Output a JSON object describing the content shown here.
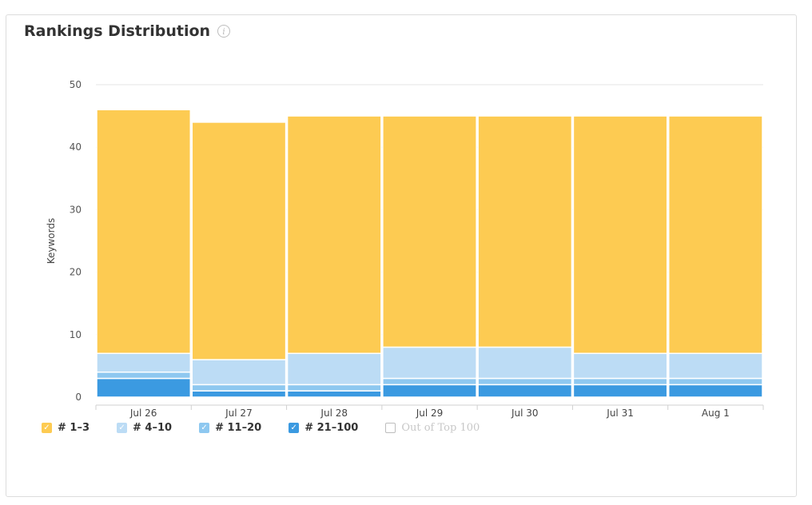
{
  "chart_data": {
    "type": "bar",
    "stacked": true,
    "title": "Rankings Distribution",
    "ylabel": "Keywords",
    "xlabel": "",
    "ylim": [
      0,
      50
    ],
    "yticks": [
      0,
      10,
      20,
      30,
      40,
      50
    ],
    "grid": true,
    "legend_position": "bottom-left",
    "categories": [
      "Jul 26",
      "Jul 27",
      "Jul 28",
      "Jul 29",
      "Jul 30",
      "Jul 31",
      "Aug 1"
    ],
    "series": [
      {
        "name": "# 21–100",
        "color": "#3b9ae1",
        "values": [
          3,
          1,
          1,
          2,
          2,
          2,
          2
        ]
      },
      {
        "name": "# 11–20",
        "color": "#8ec8f0",
        "values": [
          1,
          1,
          1,
          1,
          1,
          1,
          1
        ]
      },
      {
        "name": "# 4–10",
        "color": "#bcdcf5",
        "values": [
          3,
          4,
          5,
          5,
          5,
          4,
          4
        ]
      },
      {
        "name": "# 1–3",
        "color": "#fdcb52",
        "values": [
          39,
          38,
          38,
          37,
          37,
          38,
          38
        ]
      }
    ]
  },
  "info_icon": "info-icon",
  "legend": [
    {
      "label": "# 1–3",
      "color": "#fdcb52",
      "checked": true
    },
    {
      "label": "# 4–10",
      "color": "#bcdcf5",
      "checked": true
    },
    {
      "label": "# 11–20",
      "color": "#8ec8f0",
      "checked": true
    },
    {
      "label": "# 21–100",
      "color": "#3b9ae1",
      "checked": true
    },
    {
      "label": "Out of Top 100",
      "color": "#bdbdbd",
      "checked": false
    }
  ],
  "legend_check_glyph": "✓",
  "info_glyph": "i"
}
